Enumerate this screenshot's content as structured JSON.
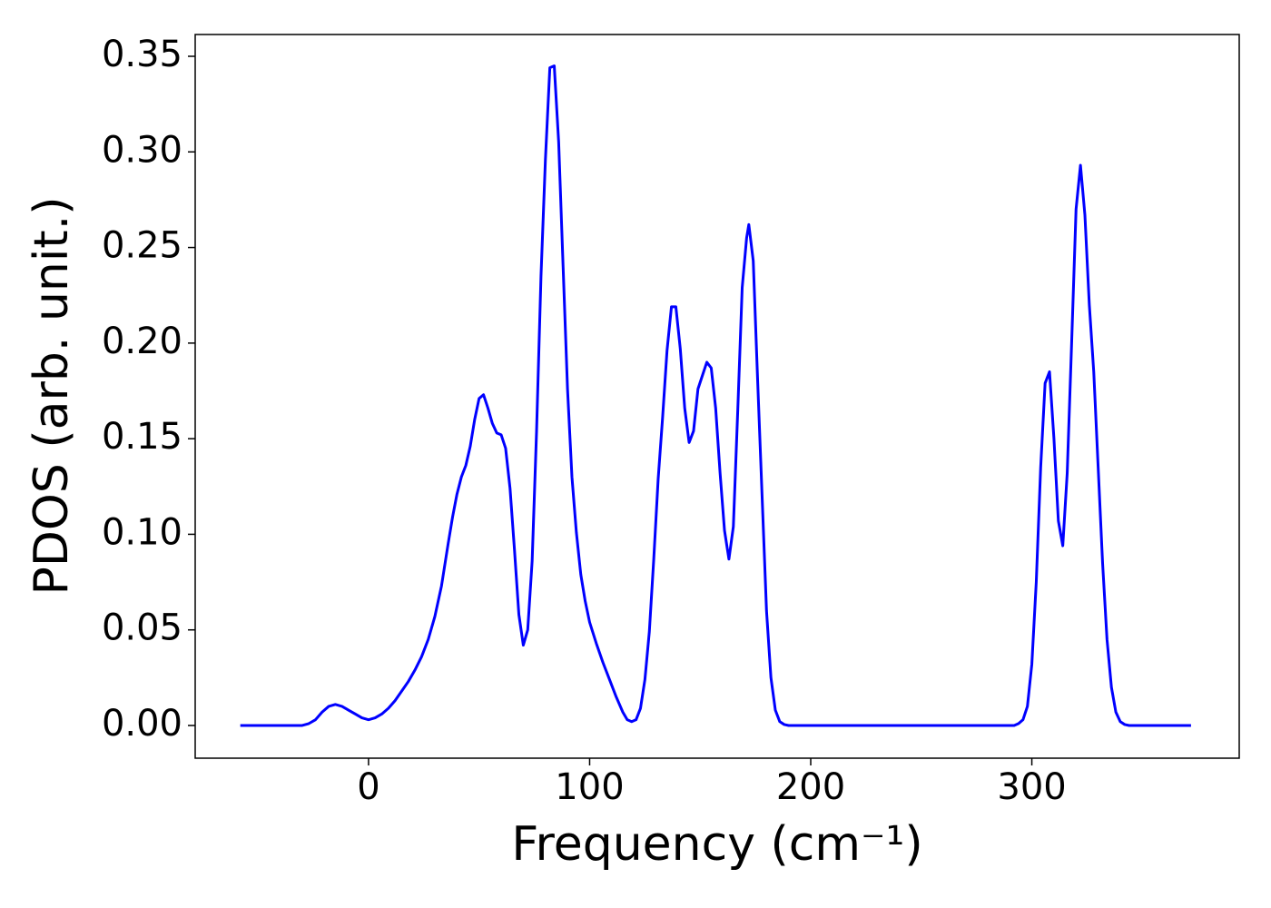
{
  "chart_data": {
    "type": "line",
    "xlabel": "Frequency (cm⁻¹)",
    "ylabel": "PDOS (arb. unit.)",
    "color": "#0000ff",
    "x": [
      -58,
      -30,
      -27,
      -24,
      -21,
      -18,
      -15,
      -12,
      -9,
      -6,
      -3,
      0,
      3,
      6,
      9,
      12,
      15,
      18,
      21,
      24,
      27,
      30,
      33,
      36,
      38,
      40,
      42,
      44,
      46,
      48,
      50,
      52,
      54,
      56,
      58,
      60,
      62,
      64,
      66,
      68,
      70,
      72,
      74,
      76,
      78,
      80,
      82,
      84,
      86,
      88,
      90,
      92,
      94,
      96,
      98,
      100,
      103,
      106,
      109,
      112,
      115,
      117,
      119,
      121,
      123,
      125,
      127,
      129,
      131,
      133,
      135,
      137,
      139,
      141,
      143,
      145,
      147,
      149,
      151,
      153,
      155,
      157,
      159,
      161,
      163,
      165,
      167,
      169,
      171,
      172,
      174,
      176,
      178,
      180,
      182,
      184,
      186,
      188,
      190,
      292,
      294,
      296,
      298,
      300,
      302,
      304,
      306,
      308,
      310,
      312,
      314,
      316,
      318,
      320,
      322,
      324,
      326,
      328,
      330,
      332,
      334,
      336,
      338,
      340,
      342,
      344,
      372
    ],
    "values": [
      0,
      0,
      0.001,
      0.003,
      0.007,
      0.01,
      0.011,
      0.01,
      0.008,
      0.006,
      0.004,
      0.003,
      0.004,
      0.006,
      0.009,
      0.013,
      0.018,
      0.023,
      0.029,
      0.036,
      0.045,
      0.057,
      0.073,
      0.095,
      0.109,
      0.121,
      0.13,
      0.136,
      0.146,
      0.16,
      0.171,
      0.173,
      0.166,
      0.158,
      0.153,
      0.152,
      0.145,
      0.124,
      0.092,
      0.058,
      0.042,
      0.05,
      0.086,
      0.154,
      0.235,
      0.296,
      0.344,
      0.345,
      0.305,
      0.24,
      0.176,
      0.13,
      0.101,
      0.079,
      0.065,
      0.054,
      0.043,
      0.033,
      0.024,
      0.015,
      0.007,
      0.003,
      0.002,
      0.003,
      0.009,
      0.024,
      0.049,
      0.087,
      0.129,
      0.161,
      0.196,
      0.219,
      0.219,
      0.197,
      0.166,
      0.148,
      0.154,
      0.176,
      0.183,
      0.19,
      0.187,
      0.166,
      0.132,
      0.102,
      0.087,
      0.104,
      0.165,
      0.229,
      0.255,
      0.262,
      0.243,
      0.18,
      0.12,
      0.06,
      0.025,
      0.008,
      0.002,
      0.0005,
      0,
      0,
      0.001,
      0.003,
      0.01,
      0.032,
      0.075,
      0.135,
      0.179,
      0.185,
      0.15,
      0.107,
      0.094,
      0.132,
      0.2,
      0.27,
      0.293,
      0.267,
      0.22,
      0.185,
      0.135,
      0.085,
      0.045,
      0.02,
      0.007,
      0.002,
      0.0005,
      0,
      0
    ],
    "xlim": [
      -78.4,
      393.8
    ],
    "ylim": [
      -0.0171,
      0.3614
    ],
    "xticks": [
      0,
      100,
      200,
      300
    ],
    "yticks": [
      {
        "value": 0,
        "label": "0.00"
      },
      {
        "value": 0.05,
        "label": "0.05"
      },
      {
        "value": 0.1,
        "label": "0.10"
      },
      {
        "value": 0.15,
        "label": "0.15"
      },
      {
        "value": 0.2,
        "label": "0.20"
      },
      {
        "value": 0.25,
        "label": "0.25"
      },
      {
        "value": 0.3,
        "label": "0.30"
      },
      {
        "value": 0.35,
        "label": "0.35"
      }
    ]
  }
}
